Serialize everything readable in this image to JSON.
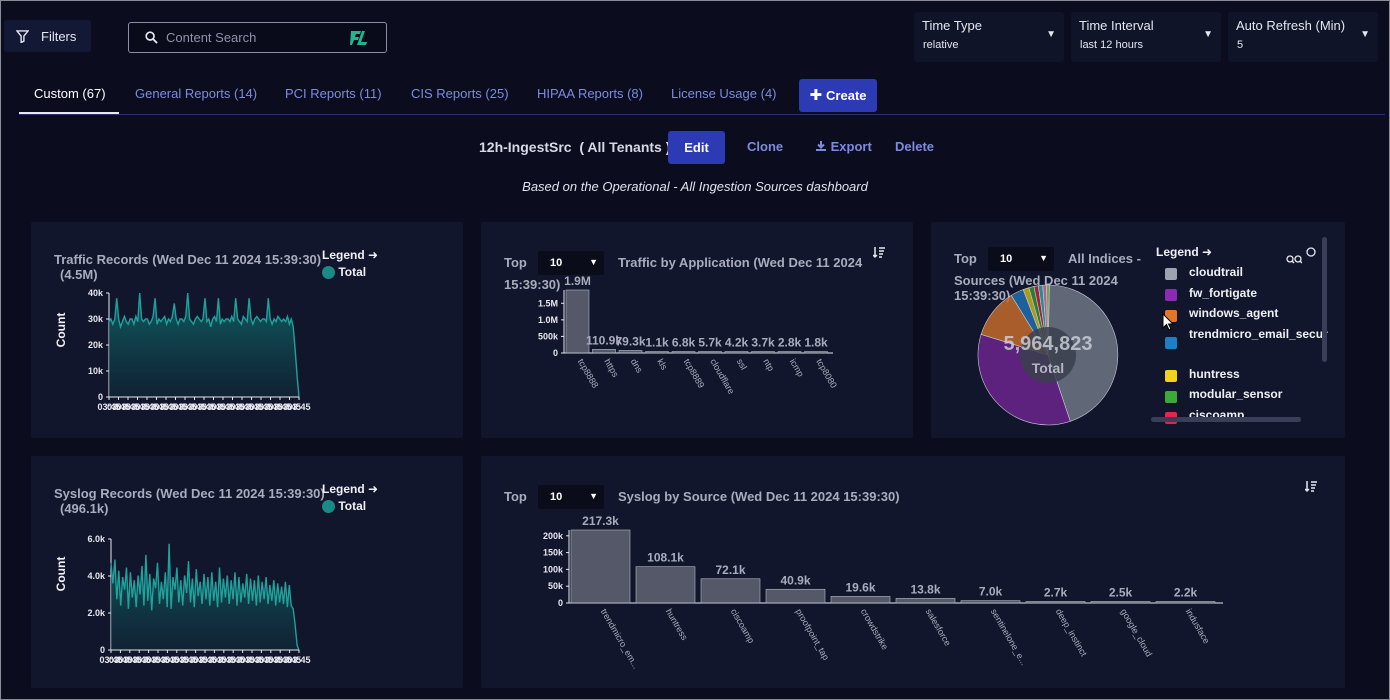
{
  "toolbar": {
    "filters_label": "Filters",
    "search_placeholder": "Content Search",
    "time_type": {
      "label": "Time Type",
      "value": "relative"
    },
    "time_interval": {
      "label": "Time Interval",
      "value": "last 12 hours"
    },
    "auto_refresh": {
      "label": "Auto Refresh (Min)",
      "value": "5"
    }
  },
  "tabs": [
    {
      "label": "Custom (67)",
      "active": true
    },
    {
      "label": "General Reports (14)"
    },
    {
      "label": "PCI Reports (11)"
    },
    {
      "label": "CIS Reports (25)"
    },
    {
      "label": "HIPAA Reports (8)"
    },
    {
      "label": "License Usage (4)"
    }
  ],
  "create_label": "Create",
  "report": {
    "title": "12h-IngestSrc  ( All Tenants )",
    "actions": {
      "edit": "Edit",
      "clone": "Clone",
      "export": "Export",
      "delete": "Delete"
    },
    "subtitle": "Based on the Operational - All Ingestion Sources dashboard"
  },
  "colors": {
    "accent": "#2c3ab4",
    "teal": "#1a8a86",
    "link": "#7d8bdd"
  },
  "panels": {
    "traffic_records": {
      "title": "Traffic Records (Wed Dec 11 2024 15:39:30)",
      "subtitle": "(4.5M)",
      "legend_title": "Legend",
      "legend_item": "Total",
      "y_label": "Count",
      "y_ticks": [
        "40k",
        "30k",
        "20k",
        "10k",
        "0"
      ],
      "x_label": "03:45"
    },
    "traffic_by_app": {
      "top_label": "Top",
      "top_value": "10",
      "title": "Traffic by Application (Wed Dec 11 2024",
      "title_line2": "15:39:30)"
    },
    "all_indices": {
      "top_label": "Top",
      "top_value": "10",
      "title": "All Indices -",
      "title_line2": "Sources (Wed Dec 11 2024",
      "title_line3": "15:39:30)",
      "total_value": "5,964,823",
      "total_label": "Total",
      "legend_title": "Legend"
    },
    "syslog_records": {
      "title": "Syslog Records (Wed Dec 11 2024 15:39:30)",
      "subtitle": "(496.1k)",
      "legend_title": "Legend",
      "legend_item": "Total",
      "y_label": "Count",
      "y_ticks": [
        "6.0k",
        "4.0k",
        "2.0k",
        "0"
      ],
      "x_label": "03:45"
    },
    "syslog_by_source": {
      "top_label": "Top",
      "top_value": "10",
      "title": "Syslog by Source (Wed Dec 11 2024 15:39:30)"
    }
  },
  "chart_data": [
    {
      "type": "area",
      "title": "Traffic Records (Wed Dec 11 2024 15:39:30)",
      "ylabel": "Count",
      "ylim": [
        0,
        40000
      ],
      "series": [
        {
          "name": "Total",
          "values": [
            29000,
            30000,
            28000,
            30000,
            38000,
            30000,
            27000,
            29000,
            31000,
            29000,
            28000,
            30000,
            30000,
            28000,
            31000,
            29000,
            40000,
            30000,
            29000,
            30000,
            30000,
            28000,
            29000,
            31000,
            38000,
            28000,
            30000,
            29000,
            30000,
            31000,
            28000,
            30000,
            29000,
            31000,
            36000,
            30000,
            28000,
            30000,
            30000,
            29000,
            31000,
            40000,
            30000,
            29000,
            28000,
            30000,
            31000,
            30000,
            29000,
            30000,
            38000,
            29000,
            30000,
            27000,
            30000,
            31000,
            29000,
            38000,
            28000,
            30000,
            29000,
            30000,
            30000,
            29000,
            31000,
            29000,
            38000,
            30000,
            29000,
            28000,
            31000,
            30000,
            29000,
            38000,
            30000,
            28000,
            30000,
            31000,
            30000,
            29000,
            30000,
            30000,
            29000,
            38000,
            30000,
            28000,
            30000,
            29000,
            31000,
            30000,
            29000,
            30000,
            29000,
            31000,
            28000,
            30000,
            27000,
            18000,
            8000,
            0
          ]
        }
      ]
    },
    {
      "type": "bar",
      "title": "Traffic by Application (Wed Dec 11 2024 15:39:30)",
      "categories": [
        "tcp8888",
        "https",
        "dns",
        "kls",
        "tcp8889",
        "cloudflare",
        "ssl",
        "ntp",
        "icmp",
        "tcp8080"
      ],
      "values": [
        1900000,
        110900,
        79300,
        1100,
        6800,
        5700,
        4200,
        3700,
        2800,
        1800
      ],
      "value_labels": [
        "1.9M",
        "110.9k",
        "79.3k",
        "1.1k",
        "6.8k",
        "5.7k",
        "4.2k",
        "3.7k",
        "2.8k",
        "1.8k"
      ],
      "y_ticks": [
        "1.5M",
        "1.0M",
        "500k",
        "0"
      ]
    },
    {
      "type": "pie",
      "title": "All Indices - Sources (Wed Dec 11 2024 15:39:30)",
      "total": "5,964,823",
      "legend": [
        {
          "name": "cloudtrail",
          "color": "#9da4b0"
        },
        {
          "name": "fw_fortigate",
          "color": "#8a2bb0"
        },
        {
          "name": "windows_agent",
          "color": "#e0772a"
        },
        {
          "name": "trendmicro_email_secur",
          "color": "#1f7fc4"
        },
        {
          "name": "huntress",
          "color": "#f2d21c"
        },
        {
          "name": "modular_sensor",
          "color": "#3aaa3a"
        },
        {
          "name": "ciscoamp",
          "color": "#e0284d"
        }
      ],
      "values": [
        2640000,
        2070000,
        680000,
        180000,
        80000,
        70000,
        60000,
        60000,
        50000,
        40000
      ]
    },
    {
      "type": "area",
      "title": "Syslog Records (Wed Dec 11 2024 15:39:30)",
      "ylabel": "Count",
      "ylim": [
        0,
        7000
      ],
      "series": [
        {
          "name": "Total",
          "values": [
            5500,
            4200,
            5700,
            3200,
            5000,
            2800,
            4600,
            3800,
            5200,
            2600,
            4900,
            3300,
            4400,
            2700,
            4700,
            3500,
            5300,
            2800,
            6000,
            3100,
            4800,
            2500,
            4500,
            3900,
            5500,
            2900,
            4300,
            3200,
            4900,
            2700,
            6700,
            2600,
            4600,
            3800,
            5200,
            3000,
            4400,
            2800,
            4700,
            3600,
            5600,
            3000,
            4500,
            2700,
            5100,
            3400,
            4300,
            2900,
            4800,
            3200,
            4600,
            2800,
            4900,
            3100,
            4300,
            2700,
            5200,
            3000,
            4500,
            3300,
            4700,
            2900,
            4400,
            3200,
            4900,
            2800,
            4600,
            3000,
            4200,
            3300,
            4800,
            2900,
            4500,
            3100,
            4400,
            2800,
            4700,
            3000,
            4300,
            3200,
            4600,
            2900,
            4100,
            3100,
            4400,
            2800,
            4200,
            3000,
            4000,
            2900,
            4300,
            2700,
            4100,
            2800,
            2600,
            1600,
            300,
            0
          ]
        }
      ]
    },
    {
      "type": "bar",
      "title": "Syslog by Source (Wed Dec 11 2024 15:39:30)",
      "categories": [
        "trendmicro_em...",
        "huntress",
        "ciscoamp",
        "proofpoint_tap",
        "crowdstrike",
        "salesforce",
        "sentinelone_e...",
        "deep_instinct",
        "google_cloud",
        "indusface"
      ],
      "values": [
        217300,
        108100,
        72100,
        40900,
        19600,
        13800,
        7000,
        2700,
        2500,
        2200
      ],
      "value_labels": [
        "217.3k",
        "108.1k",
        "72.1k",
        "40.9k",
        "19.6k",
        "13.8k",
        "7.0k",
        "2.7k",
        "2.5k",
        "2.2k"
      ],
      "y_ticks": [
        "200k",
        "150k",
        "100k",
        "50k",
        "0"
      ]
    }
  ]
}
